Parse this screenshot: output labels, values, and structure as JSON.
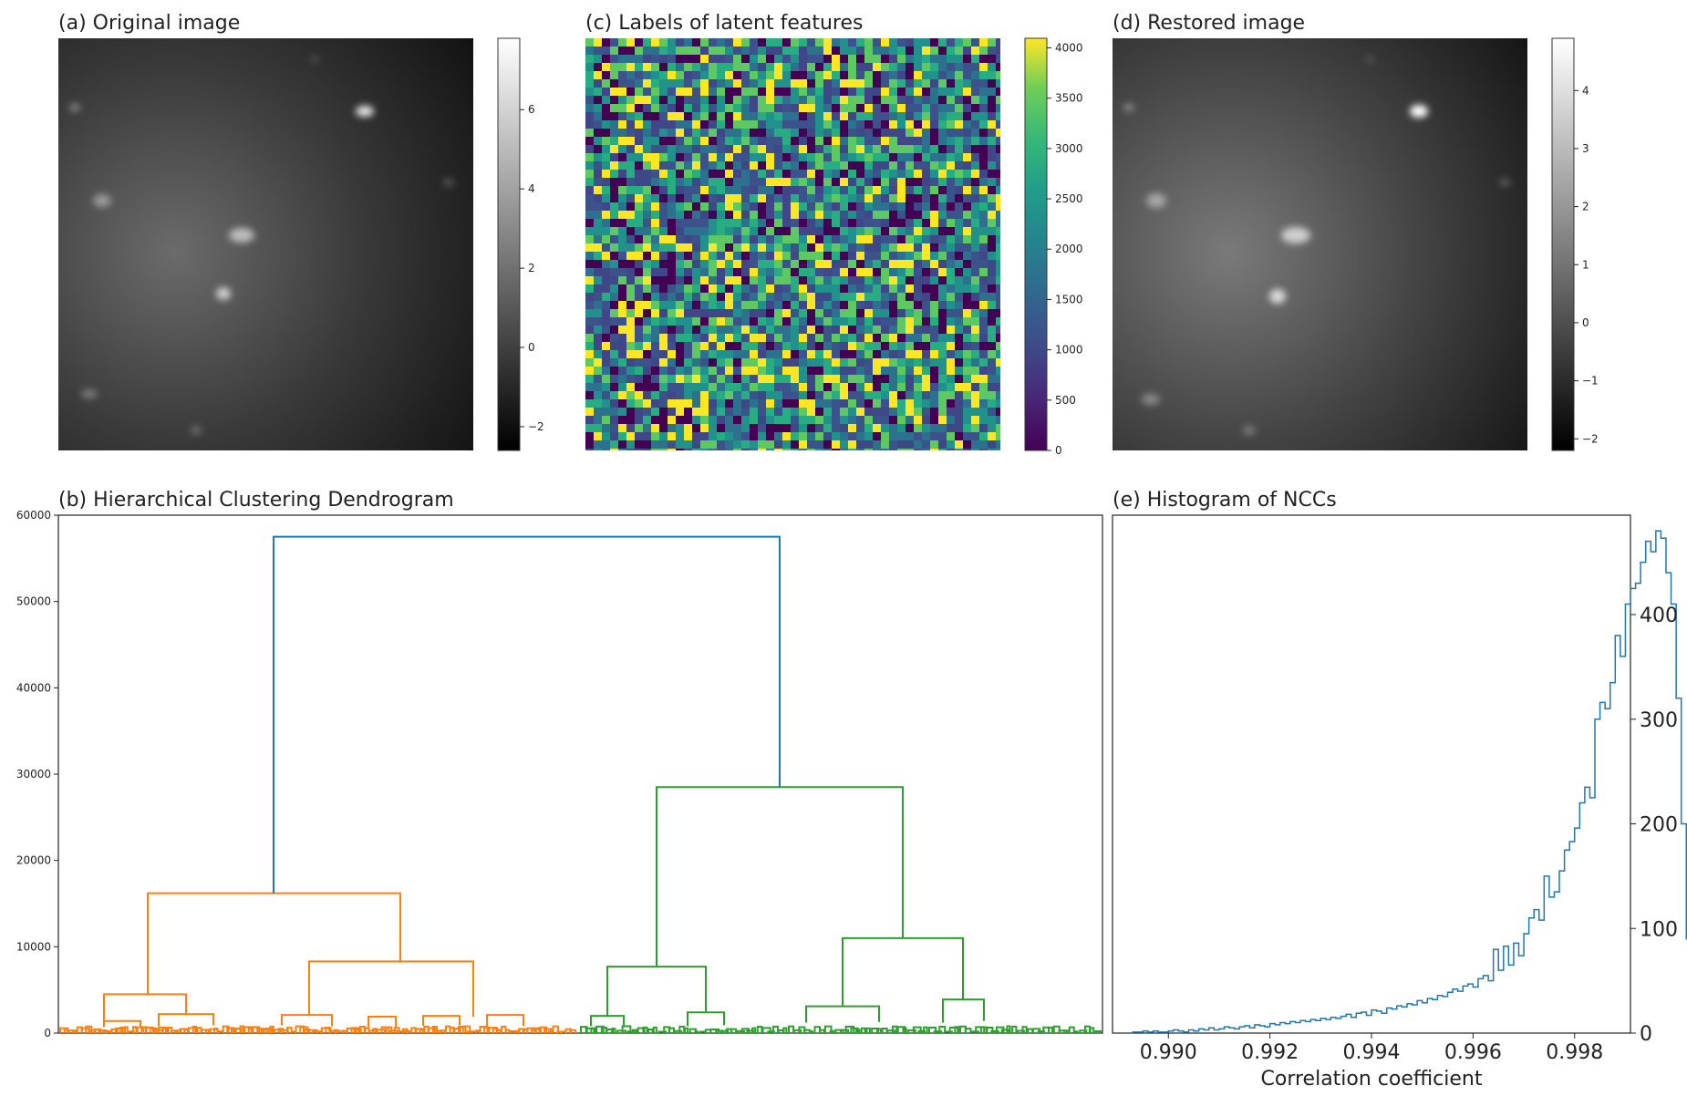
{
  "chart_data": [
    {
      "panel": "a",
      "type": "heatmap",
      "title": "(a) Original image",
      "colormap": "gray",
      "colorbar": {
        "ticks": [
          -2,
          0,
          2,
          4,
          6
        ],
        "tick_labels": [
          "−2",
          "0",
          "2",
          "4",
          "6"
        ],
        "range": [
          -2.6,
          7.8
        ]
      }
    },
    {
      "panel": "c",
      "type": "heatmap",
      "title": "(c) Labels of latent features",
      "colormap": "viridis",
      "colorbar": {
        "ticks": [
          0,
          500,
          1000,
          1500,
          2000,
          2500,
          3000,
          3500,
          4000
        ],
        "tick_labels": [
          "0",
          "500",
          "1000",
          "1500",
          "2000",
          "2500",
          "3000",
          "3500",
          "4000"
        ],
        "range": [
          0,
          4095
        ]
      }
    },
    {
      "panel": "d",
      "type": "heatmap",
      "title": "(d) Restored image",
      "colormap": "gray",
      "colorbar": {
        "ticks": [
          -2,
          -1,
          0,
          1,
          2,
          3,
          4
        ],
        "tick_labels": [
          "−2",
          "−1",
          "0",
          "1",
          "2",
          "3",
          "4"
        ],
        "range": [
          -2.2,
          4.9
        ]
      }
    },
    {
      "panel": "b",
      "type": "dendrogram",
      "title": "(b) Hierarchical Clustering Dendrogram",
      "xlabel": "",
      "ylabel": "",
      "ylim": [
        0,
        60000
      ],
      "yticks": [
        0,
        10000,
        20000,
        30000,
        40000,
        50000,
        60000
      ],
      "colors": {
        "root": "#1f77b4",
        "cluster1": "#ff7f0e",
        "cluster2": "#2ca02c"
      },
      "root_height": 57500,
      "cluster1_height": 16200,
      "cluster2_height": 28500,
      "cluster1_sub": [
        {
          "height": 4500,
          "children": [
            700,
            2200
          ]
        },
        {
          "height": 8300,
          "children": [
            2100,
            1900
          ]
        }
      ],
      "cluster2_sub": [
        {
          "height": 7700,
          "children": [
            2000,
            2400
          ]
        },
        {
          "height": 11000,
          "children": [
            3100,
            3900
          ]
        }
      ]
    },
    {
      "panel": "e",
      "type": "histogram",
      "title": "(e) Histogram of NCCs",
      "xlabel": "Correlation coefficient",
      "ylabel": "",
      "xlim": [
        0.9889,
        0.9991
      ],
      "ylim": [
        0,
        495
      ],
      "xticks": [
        0.99,
        0.992,
        0.994,
        0.996,
        0.998
      ],
      "xtick_labels": [
        "0.990",
        "0.992",
        "0.994",
        "0.996",
        "0.998"
      ],
      "yticks": [
        0,
        100,
        200,
        300,
        400
      ],
      "ytick_labels": [
        "0",
        "100",
        "200",
        "300",
        "400"
      ],
      "color": "#1f77b4",
      "bins": {
        "start": 0.9893,
        "width": 0.0001
      },
      "counts": [
        1,
        1,
        2,
        1,
        2,
        1,
        1,
        2,
        3,
        2,
        1,
        3,
        2,
        4,
        3,
        5,
        3,
        4,
        6,
        5,
        4,
        6,
        7,
        5,
        8,
        7,
        6,
        9,
        8,
        10,
        9,
        11,
        10,
        12,
        11,
        13,
        12,
        14,
        13,
        15,
        14,
        16,
        18,
        15,
        19,
        20,
        17,
        22,
        21,
        19,
        24,
        23,
        26,
        25,
        28,
        27,
        31,
        29,
        33,
        32,
        36,
        35,
        39,
        42,
        40,
        45,
        47,
        44,
        52,
        55,
        50,
        80,
        60,
        83,
        65,
        86,
        74,
        95,
        110,
        118,
        108,
        150,
        130,
        135,
        155,
        175,
        183,
        196,
        220,
        235,
        225,
        300,
        316,
        310,
        335,
        380,
        360,
        410,
        425,
        430,
        450,
        470,
        460,
        480,
        473,
        440,
        410,
        320,
        200,
        90,
        30,
        8,
        4,
        2,
        1
      ]
    }
  ]
}
